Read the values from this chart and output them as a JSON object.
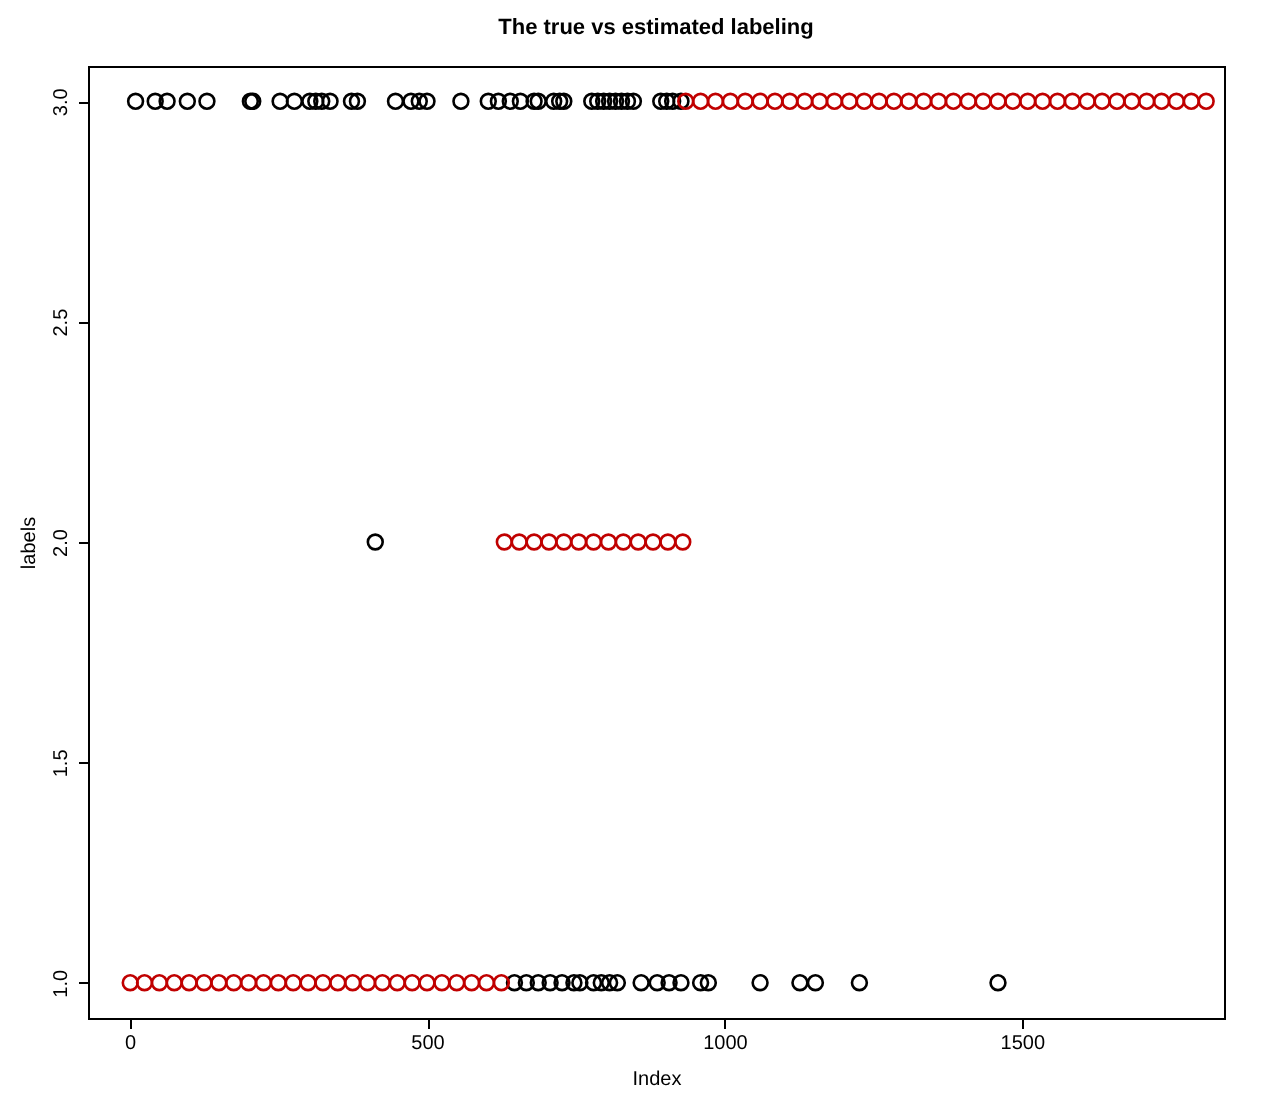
{
  "chart_data": {
    "type": "scatter",
    "title": "The true vs estimated labeling",
    "xlabel": "Index",
    "ylabel": "labels",
    "marker": "circle",
    "grid": false,
    "xlim": [
      -70,
      1840
    ],
    "xticks": [
      0,
      500,
      1000,
      1500
    ],
    "ylim": [
      0.92,
      3.08
    ],
    "yticks": [
      {
        "value": 1,
        "label": "1.0"
      },
      {
        "value": 1.5,
        "label": "1.5"
      },
      {
        "value": 2,
        "label": "2.0"
      },
      {
        "value": 2.5,
        "label": "2.5"
      },
      {
        "value": 3,
        "label": "3.0"
      }
    ],
    "series": [
      {
        "color": "#000000",
        "x": [
          10,
          43,
          63,
          97,
          130,
          203,
          207,
          253,
          277,
          303,
          313,
          323,
          337,
          373,
          383,
          413,
          447,
          473,
          487,
          500,
          557,
          603,
          620,
          640,
          647,
          657,
          667,
          680,
          687,
          687,
          707,
          713,
          723,
          727,
          730,
          747,
          757,
          777,
          780,
          787,
          793,
          797,
          807,
          807,
          817,
          820,
          827,
          837,
          847,
          860,
          887,
          893,
          903,
          907,
          913,
          927,
          927,
          960,
          973,
          1060,
          1127,
          1153,
          1227,
          1460
        ],
        "values": [
          3,
          3,
          3,
          3,
          3,
          3,
          3,
          3,
          3,
          3,
          3,
          3,
          3,
          3,
          3,
          2,
          3,
          3,
          3,
          3,
          3,
          3,
          3,
          3,
          1,
          3,
          1,
          3,
          3,
          1,
          1,
          3,
          3,
          1,
          3,
          1,
          1,
          3,
          1,
          3,
          1,
          3,
          3,
          1,
          3,
          1,
          3,
          3,
          3,
          1,
          1,
          3,
          3,
          1,
          3,
          3,
          1,
          1,
          1,
          1,
          1,
          1,
          1,
          1
        ]
      },
      {
        "color": "#c00000",
        "x": [
          1,
          25,
          50,
          75,
          100,
          125,
          150,
          175,
          200,
          225,
          250,
          275,
          300,
          325,
          350,
          375,
          400,
          425,
          450,
          475,
          500,
          525,
          550,
          575,
          600,
          625,
          630,
          655,
          680,
          705,
          730,
          755,
          780,
          805,
          830,
          855,
          880,
          905,
          930,
          935,
          960,
          985,
          1010,
          1035,
          1060,
          1085,
          1110,
          1135,
          1160,
          1185,
          1210,
          1235,
          1260,
          1285,
          1310,
          1335,
          1360,
          1385,
          1410,
          1435,
          1460,
          1485,
          1510,
          1535,
          1560,
          1585,
          1610,
          1635,
          1660,
          1685,
          1710,
          1735,
          1760,
          1785,
          1810
        ],
        "values": [
          1,
          1,
          1,
          1,
          1,
          1,
          1,
          1,
          1,
          1,
          1,
          1,
          1,
          1,
          1,
          1,
          1,
          1,
          1,
          1,
          1,
          1,
          1,
          1,
          1,
          1,
          2,
          2,
          2,
          2,
          2,
          2,
          2,
          2,
          2,
          2,
          2,
          2,
          2,
          3,
          3,
          3,
          3,
          3,
          3,
          3,
          3,
          3,
          3,
          3,
          3,
          3,
          3,
          3,
          3,
          3,
          3,
          3,
          3,
          3,
          3,
          3,
          3,
          3,
          3,
          3,
          3,
          3,
          3,
          3,
          3,
          3,
          3,
          3,
          3
        ]
      }
    ]
  }
}
